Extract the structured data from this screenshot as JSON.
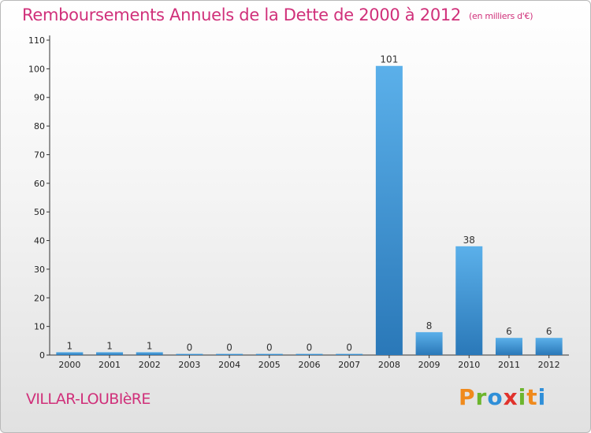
{
  "colors": {
    "title": "#d0307a",
    "bar_light": "#5bb0ea",
    "bar_dark": "#2a78b8",
    "axis": "#333333"
  },
  "chart_data": {
    "type": "bar",
    "title": "Remboursements Annuels de la Dette de 2000 à 2012",
    "subtitle": "(en milliers d'€)",
    "xlabel": "",
    "ylabel": "",
    "categories": [
      "2000",
      "2001",
      "2002",
      "2003",
      "2004",
      "2005",
      "2006",
      "2007",
      "2008",
      "2009",
      "2010",
      "2011",
      "2012"
    ],
    "values": [
      1,
      1,
      1,
      0,
      0,
      0,
      0,
      0,
      101,
      8,
      38,
      6,
      6
    ],
    "data_labels": [
      "1",
      "1",
      "1",
      "0",
      "0",
      "0",
      "0",
      "0",
      "101",
      "8",
      "38",
      "6",
      "6"
    ],
    "ylim": [
      0,
      110
    ],
    "yticks": [
      0,
      10,
      20,
      30,
      40,
      50,
      60,
      70,
      80,
      90,
      100,
      110
    ],
    "grid": false,
    "legend": "none"
  },
  "footer": {
    "commune": "VILLAR-LOUBIèRE"
  },
  "logo": {
    "text": "Proxiti",
    "letters": [
      "P",
      "r",
      "o",
      "x",
      "i",
      "t",
      "i"
    ],
    "colors": [
      "#f08a1c",
      "#6cb52d",
      "#2f8fd8",
      "#e0322c",
      "#6cb52d",
      "#f08a1c",
      "#2f8fd8"
    ]
  }
}
